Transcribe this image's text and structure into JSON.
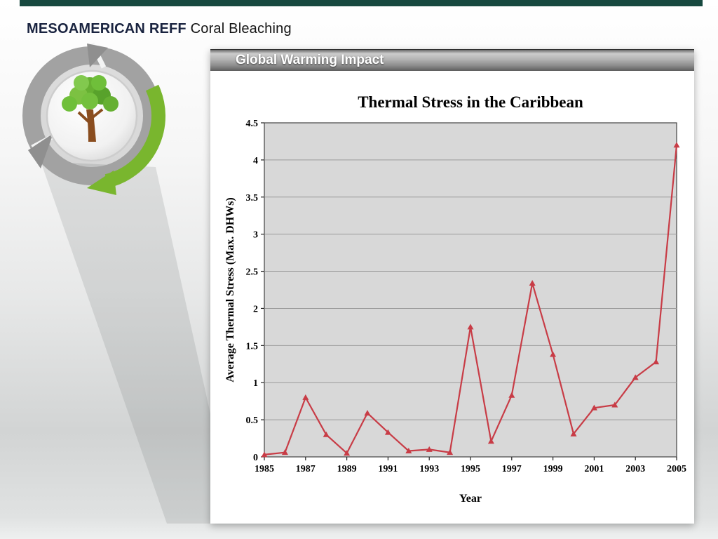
{
  "top_bar": {
    "color": "#17493f"
  },
  "slide_title": {
    "bold": "MESOAMERICAN REFF",
    "regular": " Coral Bleaching"
  },
  "panel": {
    "header": "Global Warming Impact"
  },
  "logo": {
    "description": "tree-cycle-logo",
    "arrow_color": "#79b62e",
    "ring_color": "#a2a2a2"
  },
  "chart_data": {
    "type": "line",
    "title": "Thermal Stress in the Caribbean",
    "xlabel": "Year",
    "ylabel": "Average Thermal Stress  (Max. DHWs)",
    "x": [
      1985,
      1986,
      1987,
      1988,
      1989,
      1990,
      1991,
      1992,
      1993,
      1994,
      1995,
      1996,
      1997,
      1998,
      1999,
      2000,
      2001,
      2002,
      2003,
      2004,
      2005
    ],
    "values": [
      0.03,
      0.06,
      0.8,
      0.3,
      0.05,
      0.59,
      0.33,
      0.08,
      0.1,
      0.06,
      1.75,
      0.21,
      0.83,
      2.34,
      1.38,
      0.31,
      0.66,
      0.7,
      1.07,
      1.28,
      4.2
    ],
    "xticks": [
      1985,
      1987,
      1989,
      1991,
      1993,
      1995,
      1997,
      1999,
      2001,
      2003,
      2005
    ],
    "ylim": [
      0,
      4.5
    ],
    "ytick_step": 0.5,
    "line_color": "#c83c46",
    "marker": "triangle-up",
    "plot_bg": "#d8d8d8",
    "grid": "horizontal",
    "legend": "none"
  }
}
